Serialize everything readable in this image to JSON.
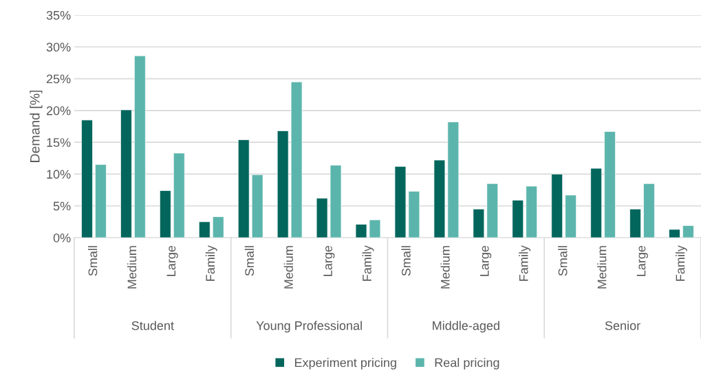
{
  "chart_data": {
    "type": "bar",
    "ylabel": "Demand [%]",
    "categories": [
      "Small",
      "Medium",
      "Large",
      "Family",
      "Small",
      "Medium",
      "Large",
      "Family",
      "Small",
      "Medium",
      "Large",
      "Family",
      "Small",
      "Medium",
      "Large",
      "Family"
    ],
    "annotations": [
      "Student",
      "Young Professional",
      "Middle-aged",
      "Senior"
    ],
    "series": [
      {
        "name": "Experiment pricing",
        "color": "#03665c",
        "values": [
          18.5,
          20.1,
          7.4,
          2.5,
          15.4,
          16.8,
          6.2,
          2.1,
          11.2,
          12.2,
          4.5,
          5.9,
          10.0,
          10.9,
          4.5,
          1.3
        ]
      },
      {
        "name": "Real pricing",
        "color": "#5cb5ac",
        "values": [
          11.5,
          28.6,
          13.3,
          3.3,
          9.9,
          24.5,
          11.4,
          2.8,
          7.3,
          18.2,
          8.5,
          8.1,
          6.7,
          16.7,
          8.5,
          1.9
        ]
      }
    ],
    "ylim": [
      0,
      35
    ],
    "yticks": [
      {
        "value": 0,
        "label": "0%"
      },
      {
        "value": 5,
        "label": "5%"
      },
      {
        "value": 10,
        "label": "10%"
      },
      {
        "value": 15,
        "label": "15%"
      },
      {
        "value": 20,
        "label": "20%"
      },
      {
        "value": 25,
        "label": "25%"
      },
      {
        "value": 30,
        "label": "30%"
      },
      {
        "value": 35,
        "label": "35%"
      }
    ],
    "grid": "y",
    "legend": "bottom"
  }
}
